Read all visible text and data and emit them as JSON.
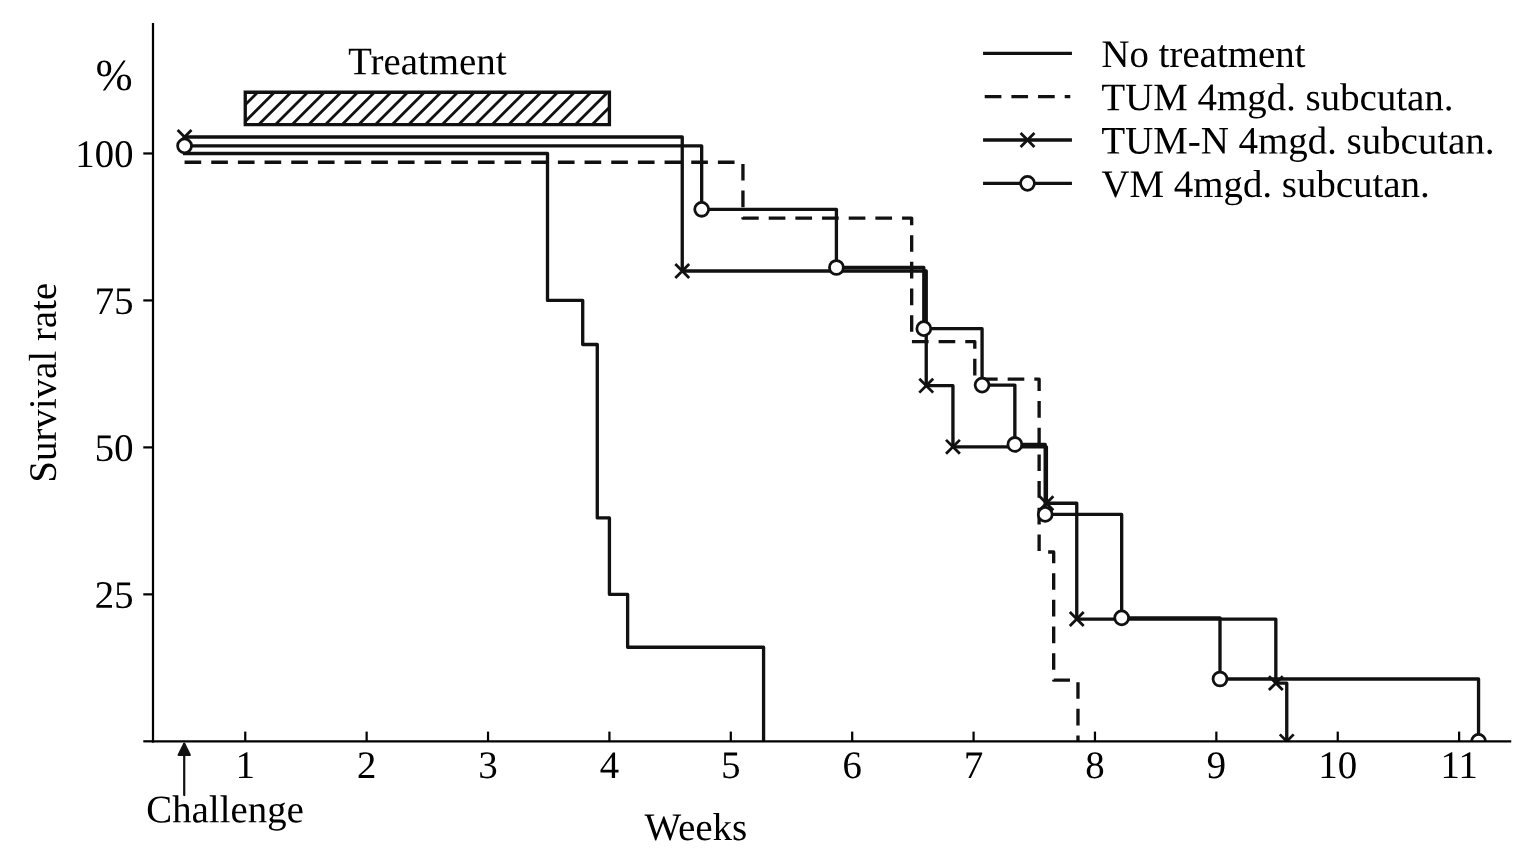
{
  "chart_data": {
    "type": "step",
    "xlabel": "Weeks",
    "ylabel": "Survival rate",
    "xlim": [
      0.24,
      11.42
    ],
    "xticks": [
      1,
      2,
      3,
      4,
      5,
      6,
      7,
      8,
      9,
      10,
      11
    ],
    "ylim": [
      0,
      122
    ],
    "yticks": [
      {
        "value": 0,
        "label": null
      },
      25,
      50,
      75,
      100
    ],
    "series": [
      {
        "name": "No treatment",
        "color": "#111111",
        "line_style": "solid",
        "marker": "none",
        "x": [
          0.5,
          3.49,
          3.78,
          3.9,
          4.0,
          4.15,
          5.27
        ],
        "values": [
          100,
          75,
          67.5,
          38,
          25,
          16,
          0
        ]
      },
      {
        "name": "TUM 4mgd. subcutan.",
        "color": "#111111",
        "line_style": "dashed",
        "marker": "none",
        "x": [
          0.5,
          5.1,
          6.49,
          7.01,
          7.54,
          7.66,
          7.86
        ],
        "values": [
          98.5,
          89,
          68,
          61.6,
          32.2,
          10.4,
          0
        ]
      },
      {
        "name": "TUM-N 4mgd. subcutan.",
        "color": "#111111",
        "line_style": "solid",
        "marker": "cross",
        "x": [
          0.5,
          4.6,
          6.61,
          6.83,
          7.6,
          7.85,
          9.49,
          9.58
        ],
        "values": [
          102.8,
          80,
          60.5,
          50.1,
          40.5,
          20.8,
          9.9,
          0
        ]
      },
      {
        "name": "VM 4mgd. subcutan.",
        "color": "#111111",
        "line_style": "solid",
        "marker": "circle",
        "x": [
          0.5,
          4.76,
          5.87,
          6.59,
          7.07,
          7.34,
          7.59,
          8.22,
          9.03,
          11.16
        ],
        "values": [
          101.3,
          90.5,
          80.6,
          70.2,
          60.6,
          50.5,
          38.6,
          21,
          10.6,
          0
        ]
      }
    ],
    "bands": [
      {
        "axis": "x",
        "from": 1,
        "to": 4,
        "label": "Treatment",
        "color": "#111111"
      }
    ],
    "annotations": [
      "%",
      "Challenge"
    ],
    "legend": "top right",
    "grid": false
  }
}
